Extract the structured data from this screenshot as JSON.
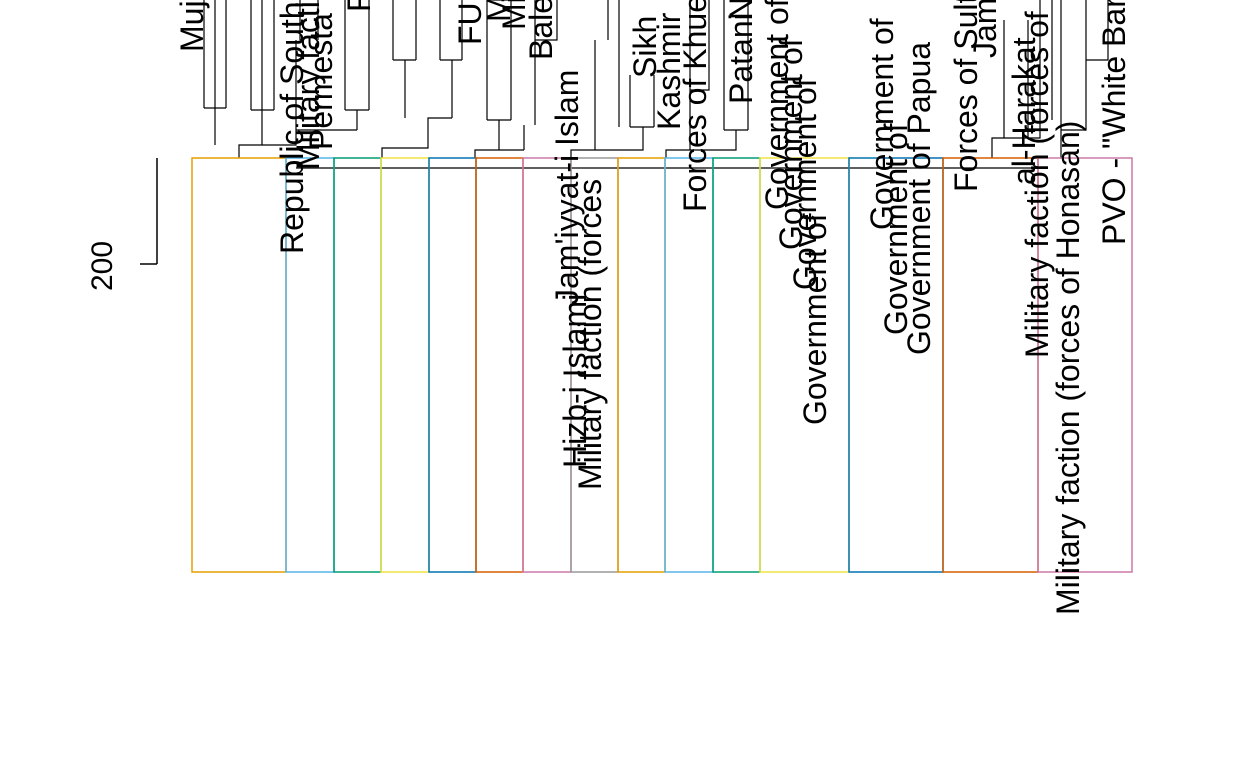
{
  "chart_data": {
    "type": "dendrogram",
    "axis": {
      "label": "200",
      "tick_value": 200
    },
    "leaf_labels": [
      "Muj",
      "Republic of South",
      "Military faction",
      "Permesta",
      "F",
      "FU",
      "M",
      "Mi",
      "Bale",
      "Jam'iyyat-i Islam",
      "Hizb-i Islami",
      "Military faction (forces",
      "Sikh",
      "Kashmir",
      "Forces of Khue",
      "Patani",
      "N",
      "Government of",
      "Government of",
      "Government of",
      "Government of",
      "Government of",
      "Government of",
      "Government of Papua",
      "Forces of Sultan",
      "Jamaa",
      "al-Harakat",
      "Military faction (forces of Honasan)",
      "Military faction (forces of Honasan)",
      "PVO - \"White Band\""
    ],
    "clusters": [
      {
        "color": "#e69f00",
        "from": 192,
        "to": 286
      },
      {
        "color": "#56b4e9",
        "from": 286,
        "to": 334
      },
      {
        "color": "#009e73",
        "from": 334,
        "to": 381
      },
      {
        "color": "#f0e442",
        "from": 381,
        "to": 429
      },
      {
        "color": "#0072b2",
        "from": 429,
        "to": 476
      },
      {
        "color": "#d55e00",
        "from": 476,
        "to": 523
      },
      {
        "color": "#cc79a7",
        "from": 523,
        "to": 571
      },
      {
        "color": "#999999",
        "from": 571,
        "to": 618
      },
      {
        "color": "#e69f00",
        "from": 618,
        "to": 665
      },
      {
        "color": "#56b4e9",
        "from": 665,
        "to": 713
      },
      {
        "color": "#009e73",
        "from": 713,
        "to": 760
      },
      {
        "color": "#f0e442",
        "from": 760,
        "to": 849
      },
      {
        "color": "#0072b2",
        "from": 849,
        "to": 943
      },
      {
        "color": "#d55e00",
        "from": 943,
        "to": 1038
      },
      {
        "color": "#cc79a7",
        "from": 1038,
        "to": 1132
      }
    ]
  }
}
